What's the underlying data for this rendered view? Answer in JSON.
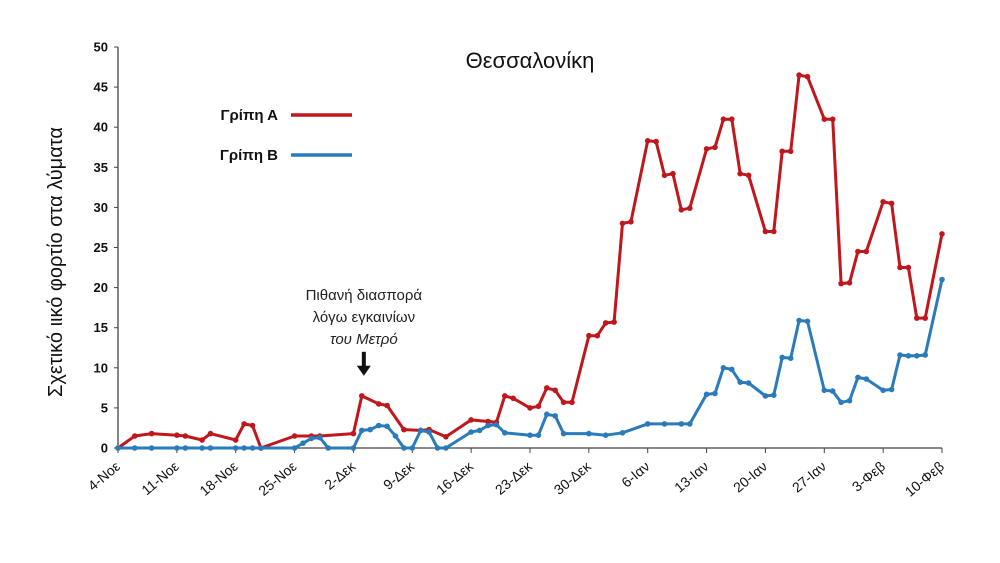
{
  "chart_data": {
    "type": "line",
    "title": "Θεσσαλονίκη",
    "xlabel": "",
    "ylabel": "Σχετικό ιικό φορτίο στα λύματα",
    "ylim": [
      0,
      50
    ],
    "yticks": [
      0,
      5,
      10,
      15,
      20,
      25,
      30,
      35,
      40,
      45,
      50
    ],
    "x_day_range": [
      0,
      98
    ],
    "xticks": [
      {
        "day": 0,
        "label": "4-Νοε"
      },
      {
        "day": 7,
        "label": "11-Νοε"
      },
      {
        "day": 14,
        "label": "18-Νοε"
      },
      {
        "day": 21,
        "label": "25-Νοε"
      },
      {
        "day": 28,
        "label": "2-Δεκ"
      },
      {
        "day": 35,
        "label": "9-Δεκ"
      },
      {
        "day": 42,
        "label": "16-Δεκ"
      },
      {
        "day": 49,
        "label": "23-Δεκ"
      },
      {
        "day": 56,
        "label": "30-Δεκ"
      },
      {
        "day": 63,
        "label": "6-Ιαν"
      },
      {
        "day": 70,
        "label": "13-Ιαν"
      },
      {
        "day": 77,
        "label": "20-Ιαν"
      },
      {
        "day": 84,
        "label": "27-Ιαν"
      },
      {
        "day": 91,
        "label": "3-Φεβ"
      },
      {
        "day": 98,
        "label": "10-Φεβ"
      }
    ],
    "legend_position": "top-left",
    "series": [
      {
        "name": "Γρίπη Α",
        "color": "#c0171c",
        "points": [
          [
            0,
            0
          ],
          [
            2,
            1.5
          ],
          [
            4,
            1.8
          ],
          [
            7,
            1.6
          ],
          [
            8,
            1.5
          ],
          [
            10,
            1.0
          ],
          [
            11,
            1.8
          ],
          [
            14,
            1.0
          ],
          [
            15,
            3.0
          ],
          [
            16,
            2.8
          ],
          [
            17,
            0
          ],
          [
            21,
            1.5
          ],
          [
            23,
            1.5
          ],
          [
            24,
            1.5
          ],
          [
            28,
            1.8
          ],
          [
            29,
            6.5
          ],
          [
            31,
            5.5
          ],
          [
            32,
            5.3
          ],
          [
            34,
            2.3
          ],
          [
            36,
            2.2
          ],
          [
            37,
            2.3
          ],
          [
            39,
            1.4
          ],
          [
            42,
            3.5
          ],
          [
            44,
            3.3
          ],
          [
            45,
            3.2
          ],
          [
            46,
            6.5
          ],
          [
            47,
            6.2
          ],
          [
            49,
            5.0
          ],
          [
            50,
            5.2
          ],
          [
            51,
            7.5
          ],
          [
            52,
            7.2
          ],
          [
            53,
            5.7
          ],
          [
            54,
            5.7
          ],
          [
            56,
            14.0
          ],
          [
            57,
            14.0
          ],
          [
            58,
            15.6
          ],
          [
            59,
            15.7
          ],
          [
            60,
            28.0
          ],
          [
            61,
            28.2
          ],
          [
            63,
            38.3
          ],
          [
            64,
            38.2
          ],
          [
            65,
            34.0
          ],
          [
            66,
            34.2
          ],
          [
            67,
            29.7
          ],
          [
            68,
            29.9
          ],
          [
            70,
            37.3
          ],
          [
            71,
            37.5
          ],
          [
            72,
            41.0
          ],
          [
            73,
            41.0
          ],
          [
            74,
            34.2
          ],
          [
            75,
            34.0
          ],
          [
            77,
            27.0
          ],
          [
            78,
            27.0
          ],
          [
            79,
            37.0
          ],
          [
            80,
            37.0
          ],
          [
            81,
            46.5
          ],
          [
            82,
            46.3
          ],
          [
            84,
            41.0
          ],
          [
            85,
            41.0
          ],
          [
            86,
            20.5
          ],
          [
            87,
            20.6
          ],
          [
            88,
            24.5
          ],
          [
            89,
            24.5
          ],
          [
            91,
            30.7
          ],
          [
            92,
            30.5
          ],
          [
            93,
            22.5
          ],
          [
            94,
            22.5
          ],
          [
            95,
            16.2
          ],
          [
            96,
            16.2
          ],
          [
            98,
            26.7
          ]
        ]
      },
      {
        "name": "Γρίπη Β",
        "color": "#2b7bba",
        "points": [
          [
            0,
            0
          ],
          [
            2,
            0
          ],
          [
            4,
            0
          ],
          [
            7,
            0
          ],
          [
            8,
            0
          ],
          [
            10,
            0
          ],
          [
            11,
            0
          ],
          [
            14,
            0
          ],
          [
            15,
            0
          ],
          [
            16,
            0
          ],
          [
            17,
            0
          ],
          [
            21,
            0
          ],
          [
            22,
            0.6
          ],
          [
            23,
            1.2
          ],
          [
            24,
            1.3
          ],
          [
            25,
            0
          ],
          [
            28,
            0
          ],
          [
            29,
            2.2
          ],
          [
            30,
            2.3
          ],
          [
            31,
            2.8
          ],
          [
            32,
            2.7
          ],
          [
            33,
            1.5
          ],
          [
            34,
            0
          ],
          [
            35,
            0
          ],
          [
            36,
            2.2
          ],
          [
            37,
            2.0
          ],
          [
            38,
            0
          ],
          [
            39,
            0
          ],
          [
            42,
            2.0
          ],
          [
            43,
            2.2
          ],
          [
            44,
            2.8
          ],
          [
            45,
            2.9
          ],
          [
            46,
            1.9
          ],
          [
            49,
            1.6
          ],
          [
            50,
            1.6
          ],
          [
            51,
            4.2
          ],
          [
            52,
            4.0
          ],
          [
            53,
            1.8
          ],
          [
            56,
            1.8
          ],
          [
            58,
            1.6
          ],
          [
            60,
            1.9
          ],
          [
            63,
            3.0
          ],
          [
            65,
            3.0
          ],
          [
            67,
            3.0
          ],
          [
            68,
            3.0
          ],
          [
            70,
            6.7
          ],
          [
            71,
            6.8
          ],
          [
            72,
            10.0
          ],
          [
            73,
            9.8
          ],
          [
            74,
            8.2
          ],
          [
            75,
            8.1
          ],
          [
            77,
            6.5
          ],
          [
            78,
            6.6
          ],
          [
            79,
            11.3
          ],
          [
            80,
            11.2
          ],
          [
            81,
            15.9
          ],
          [
            82,
            15.8
          ],
          [
            84,
            7.2
          ],
          [
            85,
            7.1
          ],
          [
            86,
            5.7
          ],
          [
            87,
            5.9
          ],
          [
            88,
            8.8
          ],
          [
            89,
            8.6
          ],
          [
            91,
            7.2
          ],
          [
            92,
            7.3
          ],
          [
            93,
            11.6
          ],
          [
            94,
            11.5
          ],
          [
            95,
            11.5
          ],
          [
            96,
            11.6
          ],
          [
            98,
            21.0
          ]
        ]
      }
    ],
    "annotation": {
      "lines": [
        "Πιθανή διασπορά",
        "λόγω εγκαινίων",
        "του Μετρό"
      ],
      "day": 29,
      "value": 9.5
    }
  }
}
